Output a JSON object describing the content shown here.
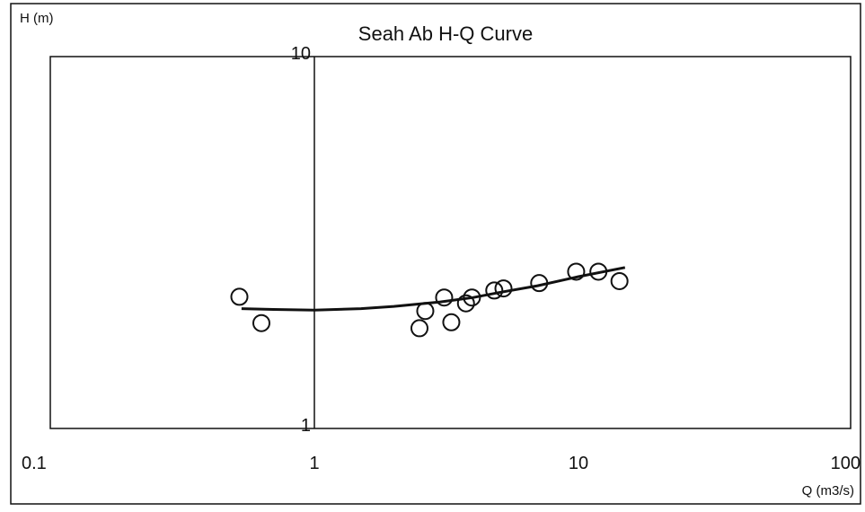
{
  "chart_data": {
    "type": "scatter",
    "title": "Seah Ab H-Q Curve",
    "xlabel": "Q (m3/s)",
    "ylabel": "H (m)",
    "x_scale": "log",
    "y_scale": "log",
    "xlim": [
      0.1,
      100
    ],
    "ylim": [
      1,
      10
    ],
    "x_ticks": [
      {
        "value": 0.1,
        "label": "0.1"
      },
      {
        "value": 1,
        "label": "1"
      },
      {
        "value": 10,
        "label": "10"
      },
      {
        "value": 100,
        "label": "100"
      }
    ],
    "y_ticks": [
      {
        "value": 1,
        "label": "1"
      },
      {
        "value": 10,
        "label": "10"
      }
    ],
    "grid": false,
    "legend": "none",
    "series": [
      {
        "kind": "points",
        "marker": "open-circle",
        "points": [
          {
            "x": 0.52,
            "y": 2.26
          },
          {
            "x": 0.63,
            "y": 1.92
          },
          {
            "x": 2.5,
            "y": 1.86
          },
          {
            "x": 2.63,
            "y": 2.07
          },
          {
            "x": 3.1,
            "y": 2.25
          },
          {
            "x": 3.3,
            "y": 1.93
          },
          {
            "x": 3.75,
            "y": 2.17
          },
          {
            "x": 3.95,
            "y": 2.25
          },
          {
            "x": 4.8,
            "y": 2.35
          },
          {
            "x": 5.2,
            "y": 2.38
          },
          {
            "x": 7.1,
            "y": 2.46
          },
          {
            "x": 9.8,
            "y": 2.64
          },
          {
            "x": 11.9,
            "y": 2.64
          },
          {
            "x": 14.3,
            "y": 2.49
          }
        ]
      },
      {
        "kind": "fitted-curve",
        "points": [
          {
            "x": 0.53,
            "y": 2.1
          },
          {
            "x": 0.7,
            "y": 2.09
          },
          {
            "x": 1.0,
            "y": 2.08
          },
          {
            "x": 1.5,
            "y": 2.1
          },
          {
            "x": 2.0,
            "y": 2.13
          },
          {
            "x": 3.0,
            "y": 2.19
          },
          {
            "x": 4.0,
            "y": 2.25
          },
          {
            "x": 5.0,
            "y": 2.32
          },
          {
            "x": 7.0,
            "y": 2.42
          },
          {
            "x": 10.0,
            "y": 2.56
          },
          {
            "x": 15.0,
            "y": 2.71
          }
        ]
      }
    ]
  },
  "colors": {
    "ink": "#111111",
    "background": "#ffffff"
  }
}
